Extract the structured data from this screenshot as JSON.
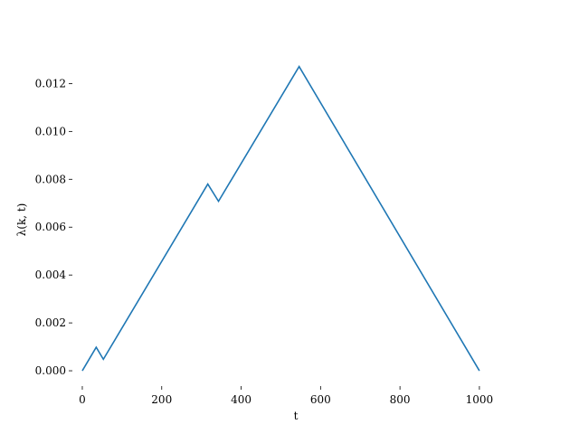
{
  "chart_data": {
    "type": "line",
    "xlabel": "t",
    "ylabel": "λ(k, t)",
    "xlim": [
      -25,
      1105
    ],
    "ylim": [
      -0.00064,
      0.0133
    ],
    "xticks": [
      0,
      200,
      400,
      600,
      800,
      1000
    ],
    "yticks": [
      0.0,
      0.002,
      0.004,
      0.006,
      0.008,
      0.01,
      0.012
    ],
    "xtick_labels": [
      "0",
      "200",
      "400",
      "600",
      "800",
      "1000"
    ],
    "ytick_labels": [
      "0.000",
      "0.002",
      "0.004",
      "0.006",
      "0.008",
      "0.010",
      "0.012"
    ],
    "grid": false,
    "series": [
      {
        "color": "#1f77b4",
        "x": [
          0,
          35,
          53,
          316,
          343,
          546,
          1000
        ],
        "y": [
          0.0,
          0.00098,
          0.00048,
          0.0078,
          0.00708,
          0.01271,
          0.0
        ]
      }
    ]
  }
}
